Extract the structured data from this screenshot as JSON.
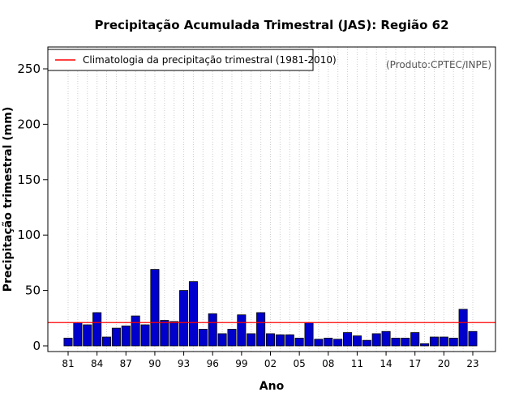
{
  "chart_data": {
    "type": "bar",
    "title": "Precipitação Acumulada Trimestral (JAS): Região 62",
    "xlabel": "Ano",
    "ylabel": "Precipitação trimestral (mm)",
    "ylim": [
      0,
      270
    ],
    "yticks": [
      0,
      50,
      100,
      150,
      200,
      250
    ],
    "credit": "(Produto:CPTEC/INPE)",
    "legend": {
      "label": "Climatologia da precipitação trimestral (1981-2010)",
      "position": "top-left"
    },
    "colors": {
      "bar": "#0000cc",
      "climatology": "#ff0000",
      "grid": "#cccccc"
    },
    "climatology": 21,
    "years": [
      "81",
      "82",
      "83",
      "84",
      "85",
      "86",
      "87",
      "88",
      "89",
      "90",
      "91",
      "92",
      "93",
      "94",
      "95",
      "96",
      "97",
      "98",
      "99",
      "00",
      "01",
      "02",
      "03",
      "04",
      "05",
      "06",
      "07",
      "08",
      "09",
      "10",
      "11",
      "12",
      "13",
      "14",
      "15",
      "16",
      "17",
      "18",
      "19",
      "20",
      "21",
      "22",
      "23"
    ],
    "xtick_labels": [
      "81",
      "84",
      "87",
      "90",
      "93",
      "96",
      "99",
      "02",
      "05",
      "08",
      "11",
      "14",
      "17",
      "20",
      "23"
    ],
    "values": [
      7,
      21,
      19,
      30,
      8,
      16,
      18,
      27,
      19,
      69,
      23,
      22,
      50,
      58,
      15,
      29,
      11,
      15,
      28,
      11,
      30,
      11,
      10,
      10,
      7,
      21,
      6,
      7,
      6,
      12,
      9,
      5,
      11,
      13,
      7,
      7,
      12,
      2,
      8,
      8,
      7,
      33,
      13
    ]
  }
}
